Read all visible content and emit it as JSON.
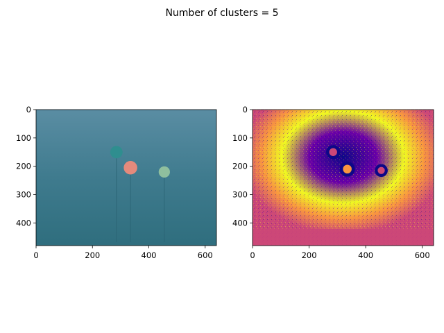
{
  "figure": {
    "suptitle": "Number of clusters = 5"
  },
  "chart_data": [
    {
      "type": "image",
      "name": "original-image",
      "xlim": [
        0,
        640
      ],
      "ylim": [
        480,
        0
      ],
      "x_ticks": [
        0,
        200,
        400,
        600
      ],
      "y_ticks": [
        0,
        100,
        200,
        300,
        400
      ],
      "colors": {
        "background": "#3f7b8e",
        "top": "#5a8da3",
        "bottom": "#2f6e7e"
      },
      "objects": [
        {
          "label": "teal-buoy",
          "x": 285,
          "y": 150,
          "r": 22,
          "color": "#2f8e8f"
        },
        {
          "label": "red-buoy",
          "x": 335,
          "y": 205,
          "r": 24,
          "color": "#e48a7c"
        },
        {
          "label": "green-buoy",
          "x": 455,
          "y": 220,
          "r": 20,
          "color": "#8fbf9e"
        }
      ],
      "grid": false
    },
    {
      "type": "image",
      "name": "clustered-image",
      "xlim": [
        0,
        640
      ],
      "ylim": [
        480,
        0
      ],
      "x_ticks": [
        0,
        200,
        400,
        600
      ],
      "y_ticks": [
        0,
        100,
        200,
        300,
        400
      ],
      "colormap": "plasma",
      "cluster_colors": [
        "#0d0887",
        "#7e03a8",
        "#cc4778",
        "#f89540",
        "#f0f921"
      ],
      "objects": [
        {
          "label": "teal-buoy",
          "x": 285,
          "y": 150,
          "r": 20
        },
        {
          "label": "red-buoy",
          "x": 335,
          "y": 210,
          "r": 22
        },
        {
          "label": "green-buoy",
          "x": 455,
          "y": 215,
          "r": 18
        }
      ],
      "grid": false
    }
  ]
}
